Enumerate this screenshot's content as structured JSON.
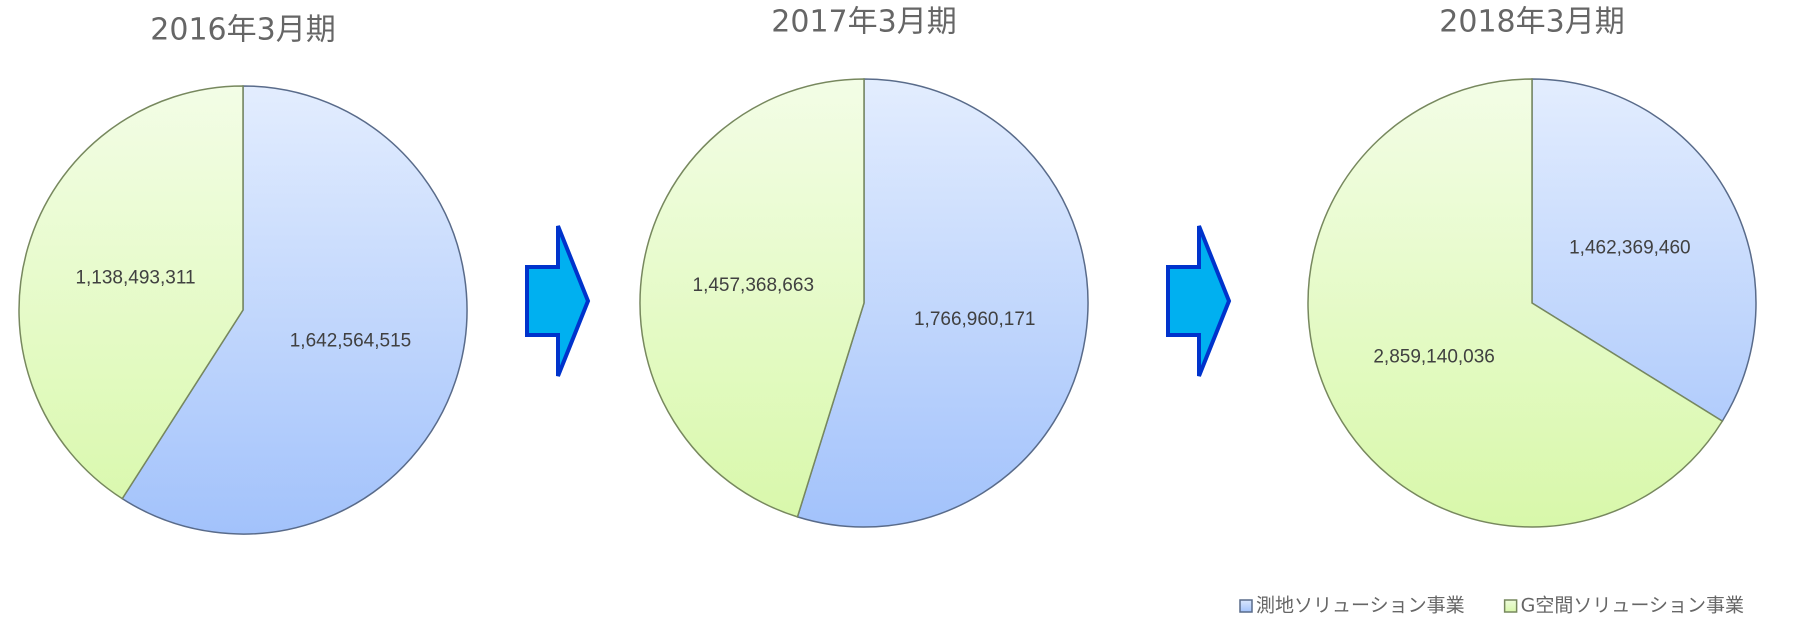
{
  "chart_data": [
    {
      "type": "pie",
      "title": "2016年3月期",
      "categories": [
        "測地ソリューション事業",
        "G空間ソリューション事業"
      ],
      "values": [
        1642564515,
        1138493311
      ],
      "value_labels": [
        "1,642,564,515",
        "1,138,493,311"
      ],
      "colors": [
        "#a2c2fb",
        "#d8f8aa"
      ],
      "legend": "bottom-right"
    },
    {
      "type": "pie",
      "title": "2017年3月期",
      "categories": [
        "測地ソリューション事業",
        "G空間ソリューション事業"
      ],
      "values": [
        1766960171,
        1457368663
      ],
      "value_labels": [
        "1,766,960,171",
        "1,457,368,663"
      ],
      "colors": [
        "#a2c2fb",
        "#d8f8aa"
      ]
    },
    {
      "type": "pie",
      "title": "2018年3月期",
      "categories": [
        "測地ソリューション事業",
        "G空間ソリューション事業"
      ],
      "values": [
        1462369460,
        2859140036
      ],
      "value_labels": [
        "1,462,369,460",
        "2,859,140,036"
      ],
      "colors": [
        "#a2c2fb",
        "#d8f8aa"
      ]
    }
  ]
}
